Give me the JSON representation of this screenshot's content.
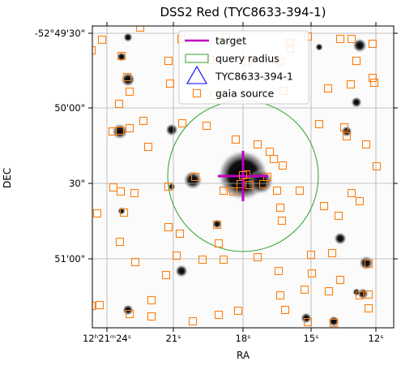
{
  "chart_data": {
    "type": "scatter",
    "title": "DSS2 Red (TYC8633-394-1)",
    "xlabel": "RA",
    "ylabel": "DEC",
    "x_tick_labels": [
      "12ʰ21ᵐ24ˢ",
      "21ˢ",
      "18ˢ",
      "15ˢ",
      "12ˢ"
    ],
    "y_tick_labels": [
      "-52°49'30\"",
      "50'00\"",
      "30\"",
      "51'00\""
    ],
    "grid": true,
    "legend_position": "top-center",
    "legend": [
      {
        "label": "target",
        "color": "#bf00bf",
        "marker": "line"
      },
      {
        "label": "query radius",
        "color": "#2ca02c",
        "marker": "circle"
      },
      {
        "label": "TYC8633-394-1",
        "color": "#0000ff",
        "marker": "triangle"
      },
      {
        "label": "gaia source",
        "color": "#ff7f0e",
        "marker": "square"
      }
    ],
    "target": {
      "ra_s": 18.0,
      "dec_arcsec": 32
    },
    "query_radius_arcsec": 30,
    "gaia_sources": [
      {
        "ra_s": 24.0,
        "dec_arcsec": 28
      },
      {
        "ra_s": 23.4,
        "dec_arcsec": 31
      },
      {
        "ra_s": 23.0,
        "dec_arcsec": 34
      },
      {
        "ra_s": 21.2,
        "dec_arcsec": 25
      },
      {
        "ra_s": 19.4,
        "dec_arcsec": 2
      },
      {
        "ra_s": 18.8,
        "dec_arcsec": 17
      },
      {
        "ra_s": 18.6,
        "dec_arcsec": 13
      },
      {
        "ra_s": 17.0,
        "dec_arcsec": 7
      },
      {
        "ra_s": 17.4,
        "dec_arcsec": 21
      },
      {
        "ra_s": 16.8,
        "dec_arcsec": 26
      },
      {
        "ra_s": 18.0,
        "dec_arcsec": 32
      },
      {
        "ra_s": 18.4,
        "dec_arcsec": 35
      },
      {
        "ra_s": 17.7,
        "dec_arcsec": 31
      },
      {
        "ra_s": 17.2,
        "dec_arcsec": 30
      },
      {
        "ra_s": 16.8,
        "dec_arcsec": 42
      },
      {
        "ra_s": 16.2,
        "dec_arcsec": 48
      },
      {
        "ra_s": 15.9,
        "dec_arcsec": 55
      },
      {
        "ra_s": 14.6,
        "dec_arcsec": 40
      },
      {
        "ra_s": 14.0,
        "dec_arcsec": 54
      },
      {
        "ra_s": 13.6,
        "dec_arcsec": 19
      },
      {
        "ra_s": 12.2,
        "dec_arcsec": 9
      },
      {
        "ra_s": 11.8,
        "dec_arcsec": 37
      },
      {
        "ra_s": 13.0,
        "dec_arcsec": 63
      },
      {
        "ra_s": 14.4,
        "dec_arcsec": 27
      },
      {
        "ra_s": 15.4,
        "dec_arcsec": 15
      },
      {
        "ra_s": 21.0,
        "dec_arcsec": 55
      },
      {
        "ra_s": 20.4,
        "dec_arcsec": 62
      },
      {
        "ra_s": 19.0,
        "dec_arcsec": 87
      },
      {
        "ra_s": 16.0,
        "dec_arcsec": 86
      },
      {
        "ra_s": 15.0,
        "dec_arcsec": 101
      },
      {
        "ra_s": 22.4,
        "dec_arcsec": -5
      },
      {
        "ra_s": 25.0,
        "dec_arcsec": -6
      },
      {
        "ra_s": 24.6,
        "dec_arcsec": -15
      },
      {
        "ra_s": 23.8,
        "dec_arcsec": -27
      },
      {
        "ra_s": 20.4,
        "dec_arcsec": -16
      },
      {
        "ra_s": 17.6,
        "dec_arcsec": -28
      },
      {
        "ra_s": 16.2,
        "dec_arcsec": -30
      },
      {
        "ra_s": 15.0,
        "dec_arcsec": -35
      },
      {
        "ra_s": 13.8,
        "dec_arcsec": -42
      },
      {
        "ra_s": 12.4,
        "dec_arcsec": -47
      },
      {
        "ra_s": 22.0,
        "dec_arcsec": -75
      },
      {
        "ra_s": 20.0,
        "dec_arcsec": -86
      },
      {
        "ra_s": 18.0,
        "dec_arcsec": -98
      }
    ]
  }
}
